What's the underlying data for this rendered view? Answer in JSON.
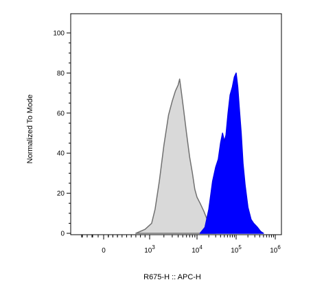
{
  "chart_data": {
    "type": "area",
    "title": "",
    "xlabel": "R675-H :: APC-H",
    "ylabel": "Normalized To Mode",
    "x_scale": "biexponential",
    "y_scale": "linear",
    "ylim": [
      0,
      100
    ],
    "y_ticks": [
      "0",
      "20",
      "40",
      "60",
      "80",
      "100"
    ],
    "x_ticks": [
      {
        "value": 0,
        "base": "0",
        "exp": ""
      },
      {
        "value": 1000,
        "base": "10",
        "exp": "3"
      },
      {
        "value": 10000,
        "base": "10",
        "exp": "4"
      },
      {
        "value": 100000,
        "base": "10",
        "exp": "5"
      },
      {
        "value": 1000000,
        "base": "10",
        "exp": "6"
      }
    ],
    "grid": false,
    "legend": "none",
    "series": [
      {
        "fill": "#d9d9d9",
        "stroke": "#707070",
        "x": [
          700,
          900,
          1100,
          1300,
          1600,
          2000,
          2500,
          3000,
          3500,
          4000,
          4300,
          4700,
          5200,
          6000,
          7000,
          8000,
          9000,
          10000,
          12000,
          15000,
          18000,
          22000,
          26000,
          30000
        ],
        "y": [
          0,
          2,
          5,
          12,
          26,
          44,
          59,
          66,
          71,
          74,
          77,
          70,
          62,
          50,
          38,
          30,
          22,
          18,
          15,
          11,
          7,
          4,
          1.5,
          0
        ]
      },
      {
        "fill": "#0000ff",
        "stroke": "#0000ee",
        "x": [
          12000,
          16000,
          20000,
          25000,
          30000,
          35000,
          40000,
          45000,
          50000,
          55000,
          62000,
          70000,
          80000,
          90000,
          100000,
          110000,
          120000,
          135000,
          150000,
          170000,
          200000,
          240000,
          280000,
          350000,
          420000,
          500000
        ],
        "y": [
          0,
          3,
          12,
          26,
          33,
          37,
          45,
          50,
          46,
          49,
          60,
          69,
          73,
          78,
          80,
          73,
          63,
          50,
          35,
          24,
          13,
          7,
          5,
          3,
          1,
          0
        ]
      }
    ]
  }
}
